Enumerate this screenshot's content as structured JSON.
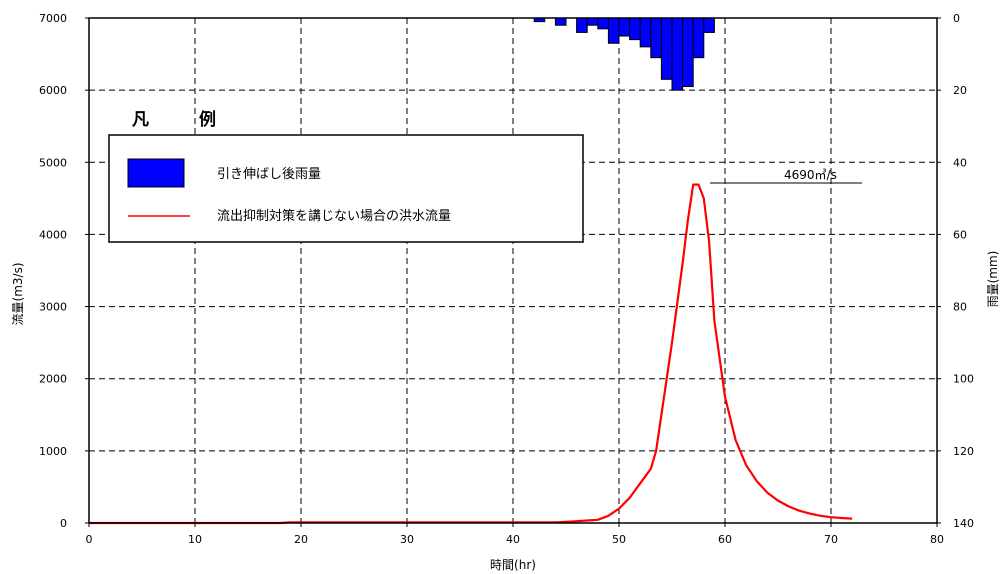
{
  "chart_data": {
    "type": "bar+line",
    "xlabel": "時間(hr)",
    "ylabel_left": "流量(m3/s)",
    "ylabel_right": "雨量(mm)",
    "xlim": [
      0,
      80
    ],
    "ylim_left": [
      0,
      7000
    ],
    "ylim_right": [
      140,
      0
    ],
    "x_ticks": [
      "0",
      "10",
      "20",
      "30",
      "40",
      "50",
      "60",
      "70",
      "80"
    ],
    "y_left_ticks": [
      "0",
      "1000",
      "2000",
      "3000",
      "4000",
      "5000",
      "6000",
      "7000"
    ],
    "y_right_ticks": [
      "0",
      "20",
      "40",
      "60",
      "80",
      "100",
      "120",
      "140"
    ],
    "grid": true,
    "legend": {
      "title_1": "凡",
      "title_2": "例",
      "placement": "upper-left",
      "entries": [
        {
          "label": "引き伸ばし後雨量",
          "type": "bar",
          "color": "#0000ff"
        },
        {
          "label": "流出抑制対策を講じない場合の洪水流量",
          "type": "line",
          "color": "#ff0000"
        }
      ]
    },
    "annotation": {
      "text": "4690㎥/s",
      "x": 57,
      "y": 4690
    },
    "series": [
      {
        "name": "引き伸ばし後雨量",
        "type": "bar",
        "axis": "right",
        "color": "#0000ff",
        "x": [
          42,
          43,
          44,
          45,
          46,
          47,
          48,
          49,
          50,
          51,
          52,
          53,
          54,
          55,
          56,
          57,
          58
        ],
        "values": [
          1,
          0,
          2,
          0,
          4,
          2,
          3,
          7,
          5,
          6,
          8,
          11,
          17,
          20,
          19,
          11,
          4
        ]
      },
      {
        "name": "流出抑制対策を講じない場合の洪水流量",
        "type": "line",
        "axis": "left",
        "color": "#ff0000",
        "x": [
          0,
          18,
          19,
          44,
          45,
          46,
          47,
          48,
          49,
          50,
          51,
          52,
          53,
          53.5,
          54,
          55,
          56,
          56.5,
          57,
          57.5,
          58,
          58.5,
          59,
          60,
          61,
          62,
          63,
          64,
          65,
          66,
          67,
          68,
          69,
          70,
          71,
          72
        ],
        "y": [
          0,
          0,
          10,
          10,
          15,
          25,
          35,
          45,
          100,
          200,
          350,
          550,
          750,
          1000,
          1500,
          2500,
          3600,
          4200,
          4690,
          4690,
          4500,
          3900,
          2800,
          1750,
          1150,
          800,
          580,
          420,
          310,
          230,
          170,
          130,
          100,
          80,
          70,
          60
        ]
      }
    ]
  }
}
